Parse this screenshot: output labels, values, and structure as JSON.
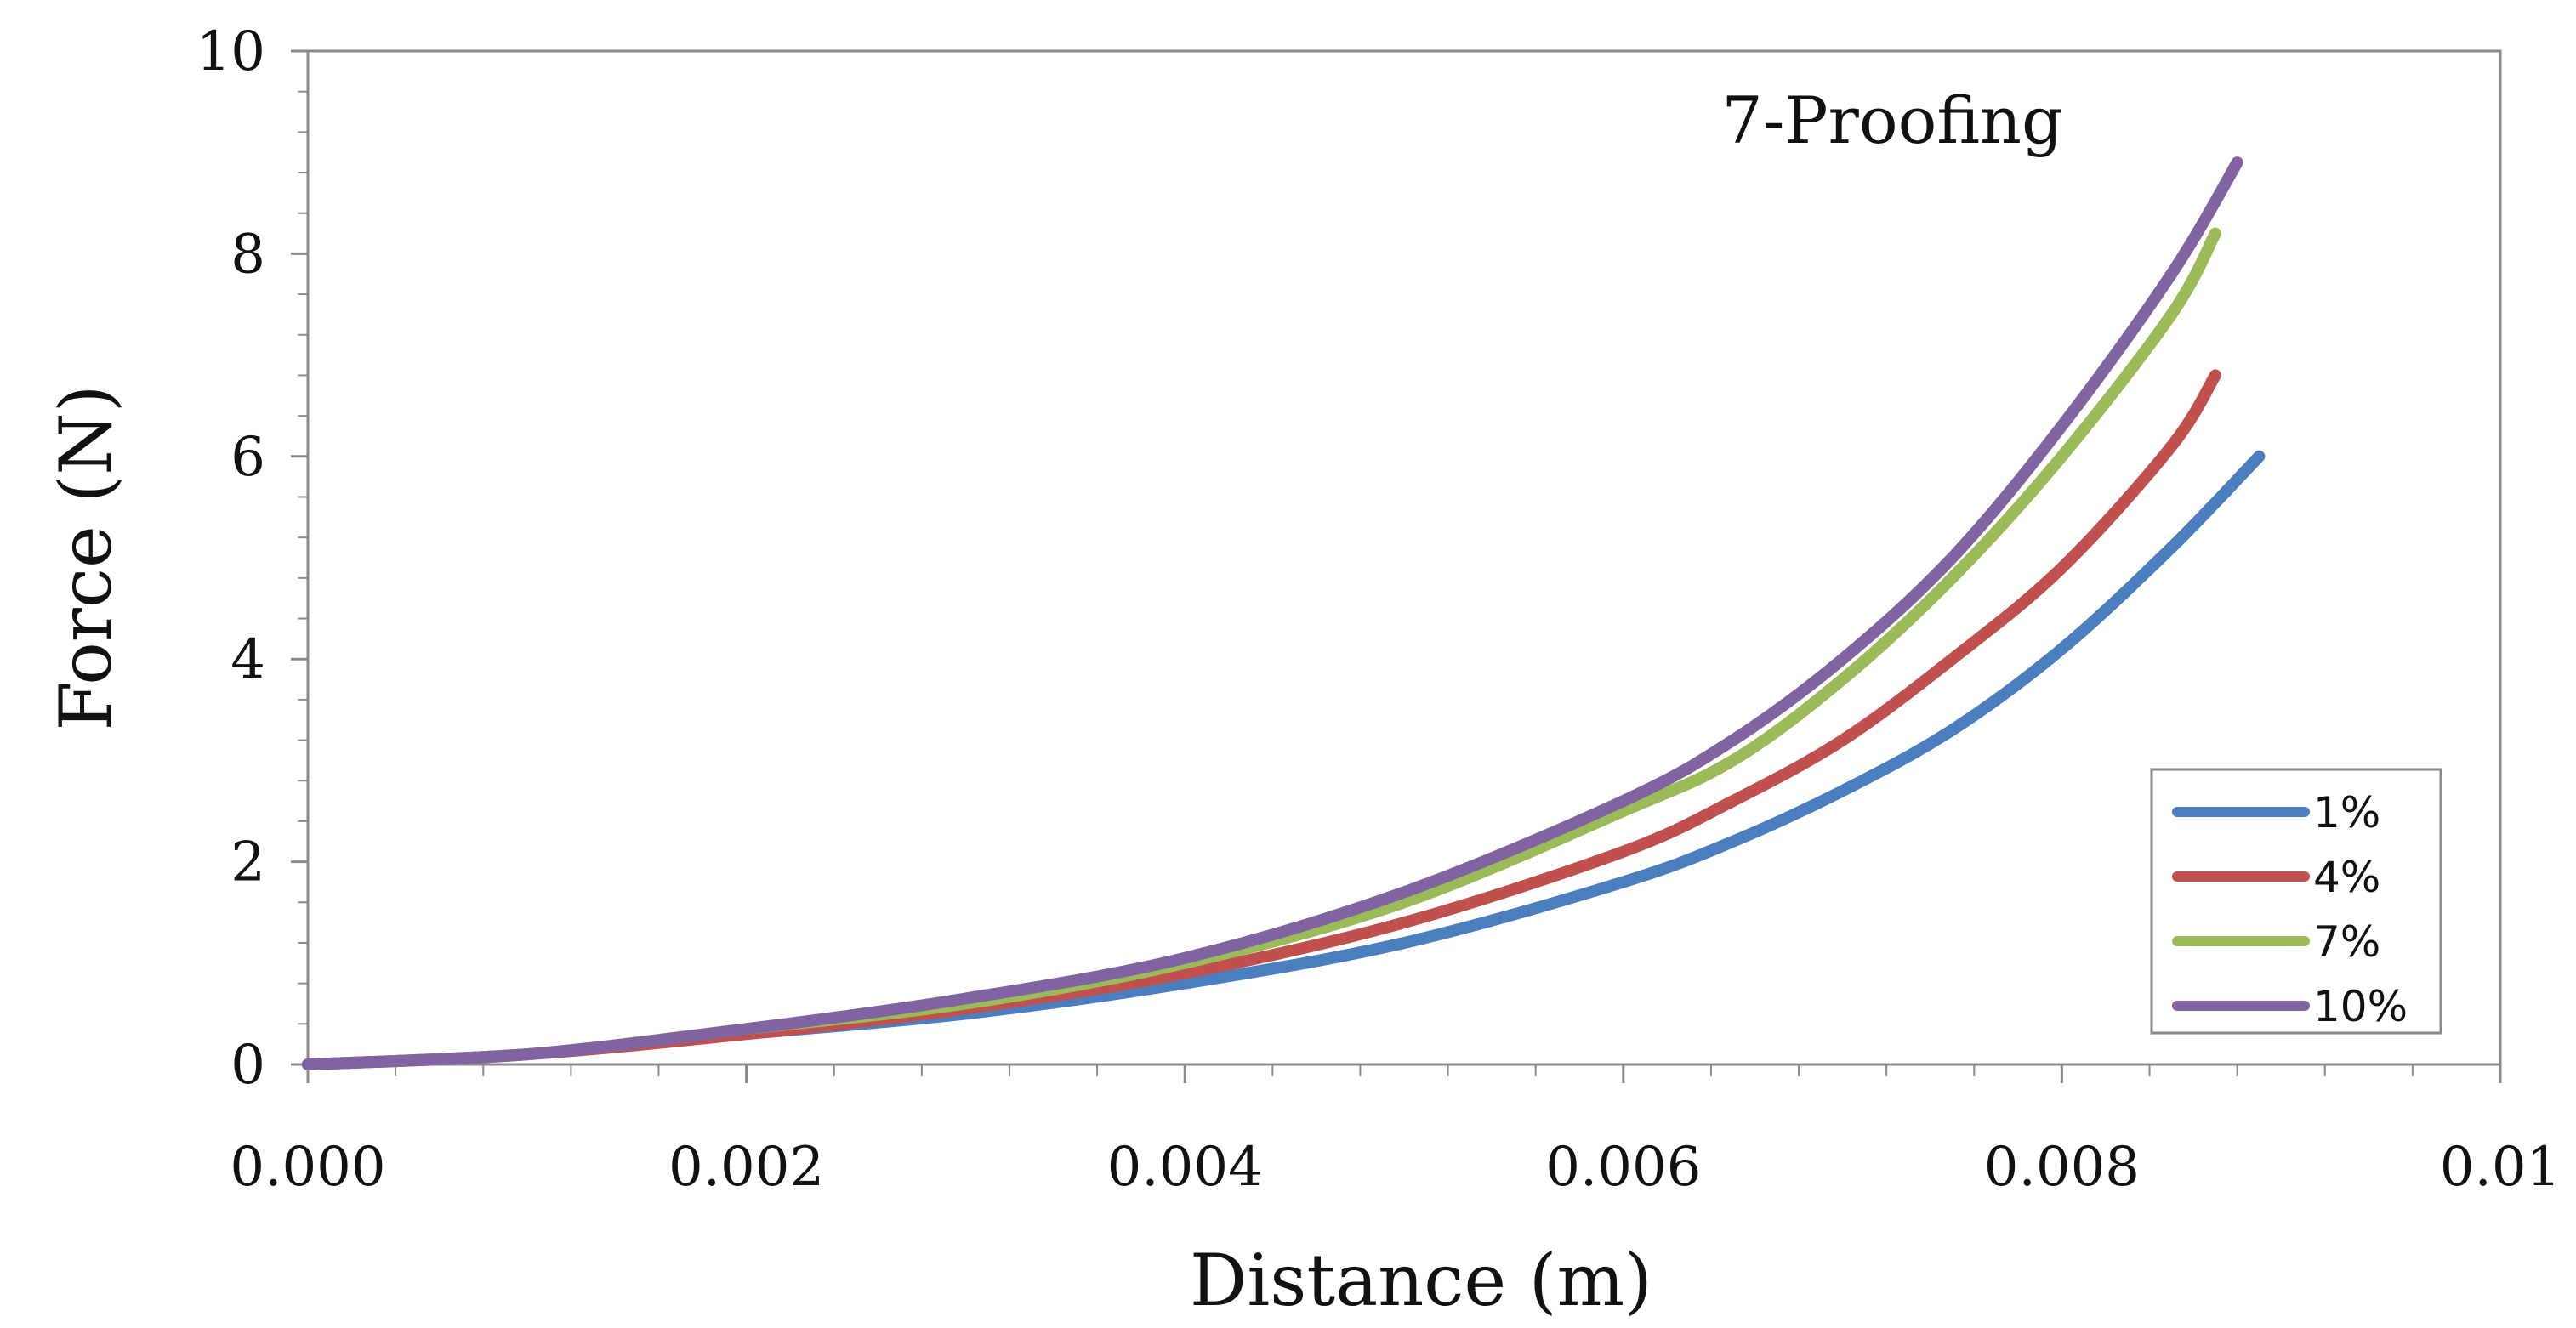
{
  "chart_data": {
    "type": "line",
    "title": "7-Proofing",
    "xlabel": "Distance (m)",
    "ylabel": "Force (N)",
    "xlim": [
      0,
      0.01
    ],
    "ylim": [
      0,
      10
    ],
    "x_ticks": [
      "0.000",
      "0.002",
      "0.004",
      "0.006",
      "0.008",
      "0.01"
    ],
    "y_ticks": [
      "0",
      "2",
      "4",
      "6",
      "8",
      "10"
    ],
    "legend_position": "bottom-right",
    "grid": false,
    "series": [
      {
        "name": "1%",
        "color": "#4a7ebf",
        "x": [
          0.0,
          0.001,
          0.002,
          0.003,
          0.004,
          0.005,
          0.006,
          0.0065,
          0.007,
          0.0075,
          0.008,
          0.0085,
          0.0089
        ],
        "y": [
          0.0,
          0.1,
          0.3,
          0.5,
          0.8,
          1.2,
          1.8,
          2.2,
          2.7,
          3.3,
          4.1,
          5.1,
          6.0
        ]
      },
      {
        "name": "4%",
        "color": "#c0504d",
        "x": [
          0.0,
          0.001,
          0.002,
          0.003,
          0.004,
          0.005,
          0.006,
          0.0065,
          0.007,
          0.0075,
          0.008,
          0.0085,
          0.0087
        ],
        "y": [
          0.0,
          0.1,
          0.3,
          0.55,
          0.9,
          1.4,
          2.1,
          2.6,
          3.2,
          4.0,
          4.9,
          6.1,
          6.8
        ]
      },
      {
        "name": "7%",
        "color": "#9bbb59",
        "x": [
          0.0,
          0.001,
          0.002,
          0.003,
          0.004,
          0.005,
          0.006,
          0.0065,
          0.007,
          0.0075,
          0.008,
          0.0085,
          0.0087
        ],
        "y": [
          0.0,
          0.1,
          0.35,
          0.6,
          1.0,
          1.6,
          2.5,
          3.0,
          3.8,
          4.8,
          6.0,
          7.4,
          8.2
        ]
      },
      {
        "name": "10%",
        "color": "#8064a2",
        "x": [
          0.0,
          0.001,
          0.002,
          0.003,
          0.004,
          0.005,
          0.006,
          0.0065,
          0.007,
          0.0075,
          0.008,
          0.0085,
          0.0088
        ],
        "y": [
          0.0,
          0.1,
          0.35,
          0.65,
          1.05,
          1.7,
          2.6,
          3.2,
          4.0,
          5.0,
          6.3,
          7.8,
          8.9
        ]
      }
    ]
  }
}
